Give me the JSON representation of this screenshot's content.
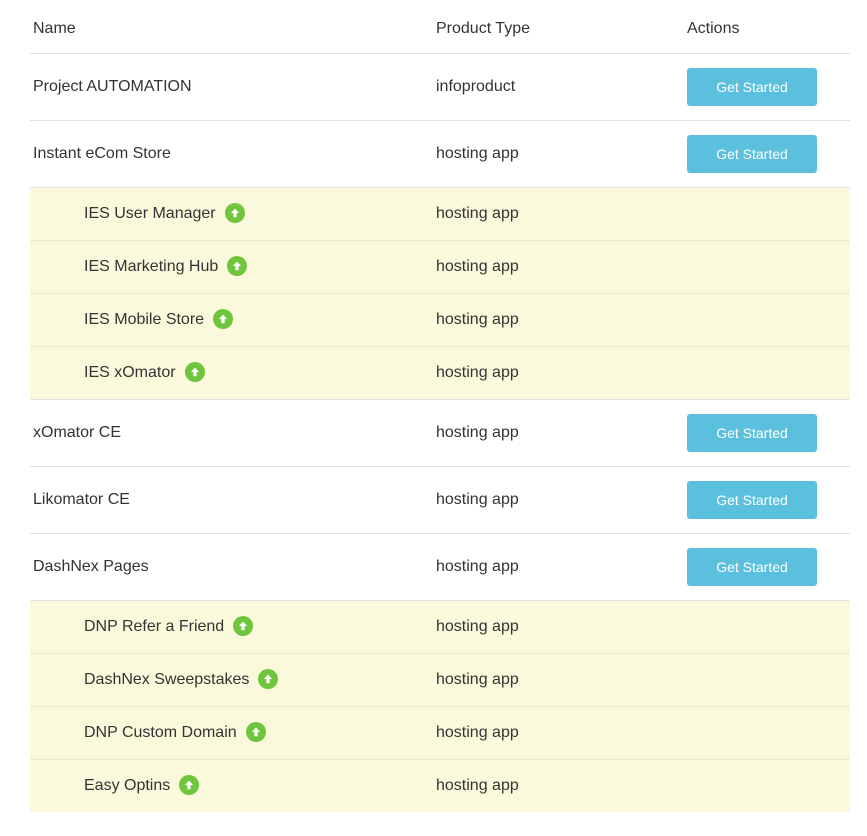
{
  "table": {
    "headers": [
      {
        "label": "Name"
      },
      {
        "label": "Product Type"
      },
      {
        "label": "Actions"
      }
    ],
    "action_label": "Get Started",
    "rows": [
      {
        "name": "Project AUTOMATION",
        "type": "infoproduct",
        "has_action": true,
        "is_sub": false,
        "has_upgrade_icon": false
      },
      {
        "name": "Instant eCom Store",
        "type": "hosting app",
        "has_action": true,
        "is_sub": false,
        "has_upgrade_icon": false
      },
      {
        "name": "IES User Manager",
        "type": "hosting app",
        "has_action": false,
        "is_sub": true,
        "has_upgrade_icon": true
      },
      {
        "name": "IES Marketing Hub",
        "type": "hosting app",
        "has_action": false,
        "is_sub": true,
        "has_upgrade_icon": true
      },
      {
        "name": "IES Mobile Store",
        "type": "hosting app",
        "has_action": false,
        "is_sub": true,
        "has_upgrade_icon": true
      },
      {
        "name": "IES xOmator",
        "type": "hosting app",
        "has_action": false,
        "is_sub": true,
        "has_upgrade_icon": true
      },
      {
        "name": "xOmator CE",
        "type": "hosting app",
        "has_action": true,
        "is_sub": false,
        "has_upgrade_icon": false
      },
      {
        "name": "Likomator CE",
        "type": "hosting app",
        "has_action": true,
        "is_sub": false,
        "has_upgrade_icon": false
      },
      {
        "name": "DashNex Pages",
        "type": "hosting app",
        "has_action": true,
        "is_sub": false,
        "has_upgrade_icon": false
      },
      {
        "name": "DNP Refer a Friend",
        "type": "hosting app",
        "has_action": false,
        "is_sub": true,
        "has_upgrade_icon": true
      },
      {
        "name": "DashNex Sweepstakes",
        "type": "hosting app",
        "has_action": false,
        "is_sub": true,
        "has_upgrade_icon": true
      },
      {
        "name": "DNP Custom Domain",
        "type": "hosting app",
        "has_action": false,
        "is_sub": true,
        "has_upgrade_icon": true
      },
      {
        "name": "Easy Optins",
        "type": "hosting app",
        "has_action": false,
        "is_sub": true,
        "has_upgrade_icon": true
      }
    ]
  },
  "icons": {
    "upgrade_icon": "arrow-circle-up"
  },
  "colors": {
    "action_button_bg": "#5bc0de",
    "action_button_text": "#ffffff",
    "sub_row_bg": "#fbf9dc",
    "upgrade_icon_bg": "#6fc63c",
    "upgrade_icon_arrow": "#ffffff",
    "row_border": "#e2e2e2",
    "text": "#333333"
  }
}
